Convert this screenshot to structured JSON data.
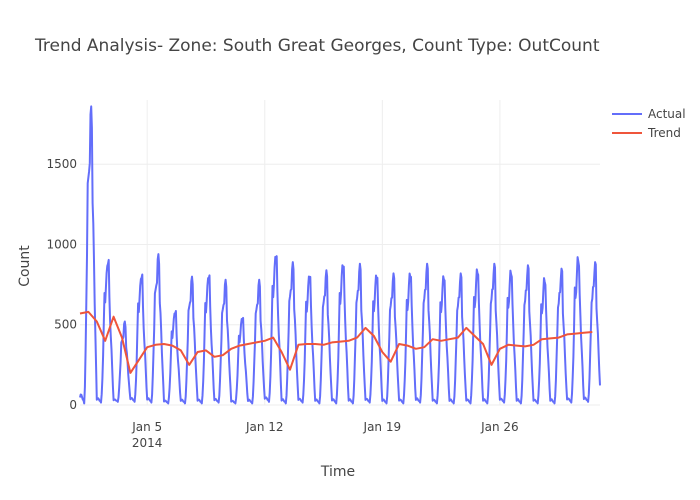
{
  "chart_data": {
    "type": "line",
    "title": "Trend Analysis- Zone: South Great Georges, Count Type: OutCount",
    "xlabel": "Time",
    "ylabel": "Count",
    "x_range": [
      "2014-01-01T00:00",
      "2014-01-31T23:00"
    ],
    "ylim": [
      0,
      1900
    ],
    "y_ticks": [
      0,
      500,
      1000,
      1500
    ],
    "x_ticks": [
      {
        "date": "2014-01-05",
        "label": "Jan 5",
        "sublabel": "2014"
      },
      {
        "date": "2014-01-12",
        "label": "Jan 12",
        "sublabel": ""
      },
      {
        "date": "2014-01-19",
        "label": "Jan 19",
        "sublabel": ""
      },
      {
        "date": "2014-01-26",
        "label": "Jan 26",
        "sublabel": ""
      }
    ],
    "grid": true,
    "legend_position": "top-right",
    "series": [
      {
        "name": "Actual",
        "color": "#636efa",
        "resolution": "hourly",
        "daily_peaks": [
          1860,
          920,
          520,
          830,
          940,
          600,
          800,
          830,
          780,
          560,
          780,
          960,
          890,
          830,
          840,
          900,
          880,
          830,
          820,
          840,
          880,
          820,
          820,
          860,
          880,
          850,
          870,
          800,
          850,
          930,
          890
        ],
        "daily_mins": [
          10,
          15,
          20,
          20,
          15,
          10,
          10,
          10,
          15,
          10,
          10,
          20,
          10,
          15,
          10,
          10,
          10,
          15,
          10,
          10,
          15,
          10,
          10,
          10,
          10,
          15,
          10,
          10,
          10,
          15,
          20
        ]
      },
      {
        "name": "Trend",
        "color": "#ef553b",
        "x": [
          "2014-01-01T00:00",
          "2014-01-01T12:00",
          "2014-01-02T00:00",
          "2014-01-02T12:00",
          "2014-01-03T00:00",
          "2014-01-03T12:00",
          "2014-01-04T00:00",
          "2014-01-04T12:00",
          "2014-01-05T00:00",
          "2014-01-05T12:00",
          "2014-01-06T00:00",
          "2014-01-06T12:00",
          "2014-01-07T00:00",
          "2014-01-07T12:00",
          "2014-01-08T00:00",
          "2014-01-08T12:00",
          "2014-01-09T00:00",
          "2014-01-09T12:00",
          "2014-01-10T00:00",
          "2014-01-10T12:00",
          "2014-01-11T00:00",
          "2014-01-11T12:00",
          "2014-01-12T00:00",
          "2014-01-12T12:00",
          "2014-01-13T00:00",
          "2014-01-13T12:00",
          "2014-01-14T00:00",
          "2014-01-14T12:00",
          "2014-01-15T00:00",
          "2014-01-15T12:00",
          "2014-01-16T00:00",
          "2014-01-16T12:00",
          "2014-01-17T00:00",
          "2014-01-17T12:00",
          "2014-01-18T00:00",
          "2014-01-18T12:00",
          "2014-01-19T00:00",
          "2014-01-19T12:00",
          "2014-01-20T00:00",
          "2014-01-20T12:00",
          "2014-01-21T00:00",
          "2014-01-21T12:00",
          "2014-01-22T00:00",
          "2014-01-22T12:00",
          "2014-01-23T00:00",
          "2014-01-23T12:00",
          "2014-01-24T00:00",
          "2014-01-24T12:00",
          "2014-01-25T00:00",
          "2014-01-25T12:00",
          "2014-01-26T00:00",
          "2014-01-26T12:00",
          "2014-01-27T00:00",
          "2014-01-27T12:00",
          "2014-01-28T00:00",
          "2014-01-28T12:00",
          "2014-01-29T00:00",
          "2014-01-29T12:00",
          "2014-01-30T00:00",
          "2014-01-30T12:00",
          "2014-01-31T00:00",
          "2014-01-31T12:00"
        ],
        "y": [
          570,
          580,
          520,
          400,
          550,
          420,
          200,
          280,
          360,
          375,
          380,
          370,
          340,
          250,
          330,
          340,
          300,
          310,
          350,
          370,
          380,
          390,
          400,
          420,
          330,
          220,
          375,
          380,
          380,
          375,
          390,
          395,
          400,
          420,
          480,
          430,
          330,
          270,
          380,
          370,
          350,
          360,
          410,
          400,
          410,
          420,
          480,
          430,
          380,
          250,
          350,
          375,
          370,
          365,
          375,
          410,
          415,
          420,
          440,
          445,
          450,
          455
        ]
      }
    ]
  }
}
